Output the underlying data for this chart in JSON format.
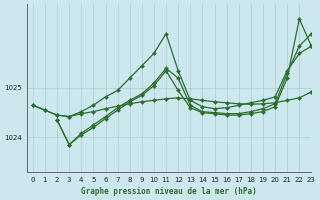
{
  "title": "Graphe pression niveau de la mer (hPa)",
  "background_color": "#cce8ee",
  "grid_color": "#aacccc",
  "line_color": "#2d6e2d",
  "xlim": [
    -0.5,
    23
  ],
  "ylim": [
    1023.3,
    1026.7
  ],
  "yticks": [
    1024,
    1025
  ],
  "xticks": [
    0,
    1,
    2,
    3,
    4,
    5,
    6,
    7,
    8,
    9,
    10,
    11,
    12,
    13,
    14,
    15,
    16,
    17,
    18,
    19,
    20,
    21,
    22,
    23
  ],
  "series": [
    {
      "x": [
        0,
        1,
        2,
        3,
        4,
        5,
        6,
        7,
        8,
        9,
        10,
        11,
        12,
        13,
        14,
        15,
        16,
        17,
        18,
        19,
        20,
        21,
        22,
        23
      ],
      "y": [
        1024.65,
        1024.55,
        1024.45,
        1024.42,
        1024.48,
        1024.52,
        1024.58,
        1024.63,
        1024.68,
        1024.72,
        1024.75,
        1024.78,
        1024.8,
        1024.78,
        1024.75,
        1024.72,
        1024.7,
        1024.68,
        1024.67,
        1024.68,
        1024.7,
        1024.75,
        1024.8,
        1024.92
      ]
    },
    {
      "x": [
        0,
        1,
        2,
        3,
        4,
        5,
        6,
        7,
        8,
        9,
        10,
        11,
        12,
        13,
        14,
        15,
        16,
        17,
        18,
        19,
        20,
        21,
        22,
        23
      ],
      "y": [
        1024.65,
        1024.55,
        1024.45,
        1024.42,
        1024.52,
        1024.65,
        1024.82,
        1024.95,
        1025.2,
        1025.45,
        1025.7,
        1026.1,
        1025.35,
        1024.75,
        1024.62,
        1024.58,
        1024.6,
        1024.65,
        1024.7,
        1024.75,
        1024.82,
        1025.35,
        1025.7,
        1025.85
      ]
    },
    {
      "x": [
        2,
        3,
        4,
        5,
        6,
        7,
        8,
        9,
        10,
        11,
        12,
        13,
        14,
        15,
        16,
        17,
        18,
        19,
        20,
        21,
        22,
        23
      ],
      "y": [
        1024.35,
        1023.85,
        1024.05,
        1024.2,
        1024.38,
        1024.55,
        1024.72,
        1024.85,
        1025.05,
        1025.35,
        1024.95,
        1024.6,
        1024.5,
        1024.48,
        1024.45,
        1024.45,
        1024.48,
        1024.52,
        1024.62,
        1025.2,
        1026.4,
        1025.85
      ]
    },
    {
      "x": [
        2,
        3,
        4,
        5,
        6,
        7,
        8,
        9,
        10,
        11,
        12,
        13,
        14,
        15,
        16,
        17,
        18,
        19,
        20,
        21,
        22,
        23
      ],
      "y": [
        1024.35,
        1023.85,
        1024.08,
        1024.25,
        1024.42,
        1024.6,
        1024.75,
        1024.88,
        1025.1,
        1025.4,
        1025.2,
        1024.65,
        1024.52,
        1024.5,
        1024.48,
        1024.48,
        1024.52,
        1024.58,
        1024.68,
        1025.3,
        1025.85,
        1026.1
      ]
    }
  ]
}
